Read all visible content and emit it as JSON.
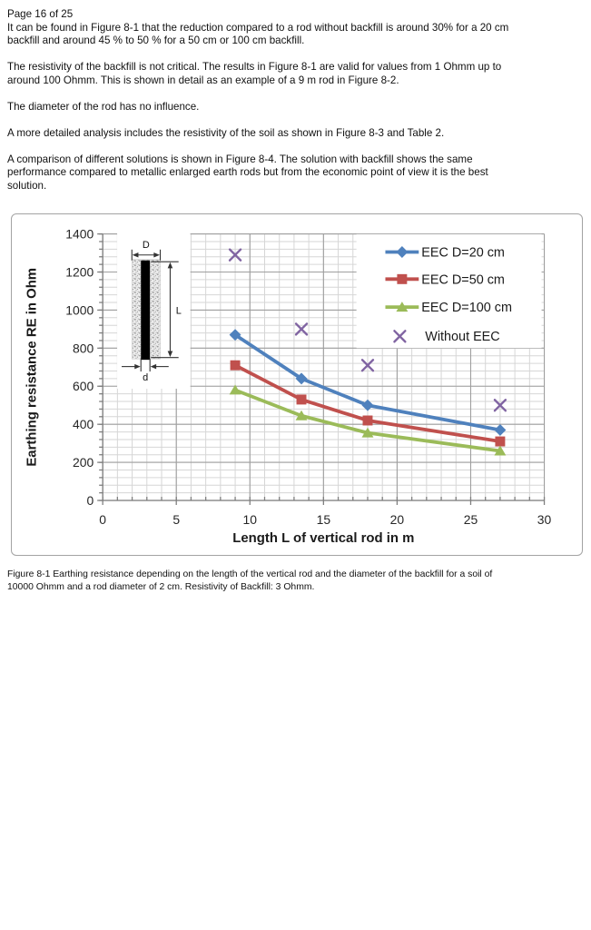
{
  "page": {
    "header": "Page 16 of 25",
    "paragraphs": [
      "It can be found in Figure 8-1 that the reduction compared to a rod without backfill is around 30% for a 20 cm\nbackfill and around 45 %  to 50 % for a 50 cm or 100 cm backfill.",
      "The resistivity of the backfill is not critical. The results in Figure 8-1 are valid for values from 1 Ohmm up to\naround 100 Ohmm. This is shown in detail as an example of a 9 m rod in Figure 8-2.",
      "The diameter of the rod has no influence.",
      "A more detailed analysis includes the resistivity of the soil as shown in Figure 8-3 and Table 2.",
      "A comparison of different solutions is shown in Figure 8-4. The solution with backfill shows the same\nperformance compared to metallic enlarged earth rods but from the economic point of view it is the best\nsolution."
    ],
    "caption": "Figure 8-1 Earthing resistance depending on the length of the vertical rod and the diameter of the backfill for a soil of\n10000 Ohmm and a rod diameter of 2 cm. Resistivity of Backfill: 3 Ohmm."
  },
  "chart_data": {
    "type": "line",
    "title": "",
    "xlabel": "Length L of vertical rod in m",
    "ylabel": "Earthing resistance RE in Ohm",
    "x": [
      9,
      13.5,
      18,
      27
    ],
    "series": [
      {
        "name": "EEC D=20 cm",
        "color": "#4F81BD",
        "marker": "diamond",
        "line": true,
        "values": [
          870,
          640,
          500,
          370
        ]
      },
      {
        "name": "EEC D=50 cm",
        "color": "#C0504D",
        "marker": "square",
        "line": true,
        "values": [
          710,
          530,
          420,
          310
        ]
      },
      {
        "name": "EEC D=100 cm",
        "color": "#9BBB59",
        "marker": "triangle",
        "line": true,
        "values": [
          580,
          445,
          355,
          260
        ]
      },
      {
        "name": "Without EEC",
        "color": "#8064A2",
        "marker": "x",
        "line": false,
        "values": [
          1290,
          900,
          710,
          500
        ]
      }
    ],
    "xlim": [
      0,
      30
    ],
    "ylim": [
      0,
      1400
    ],
    "x_ticks": [
      0,
      5,
      10,
      15,
      20,
      25,
      30
    ],
    "y_ticks": [
      0,
      200,
      400,
      600,
      800,
      1000,
      1200,
      1400
    ],
    "x_minor_step": 1,
    "y_minor_step": 40,
    "grid": "major+minor",
    "legend_position": "top-right",
    "inset_labels": {
      "diameter_backfill": "D",
      "rod_length": "L",
      "rod_diameter": "d"
    },
    "colors": {
      "grid_minor": "#d6d6d6",
      "grid_major": "#9f9f9f",
      "axis": "#7f7f7f",
      "text": "#262626"
    }
  }
}
